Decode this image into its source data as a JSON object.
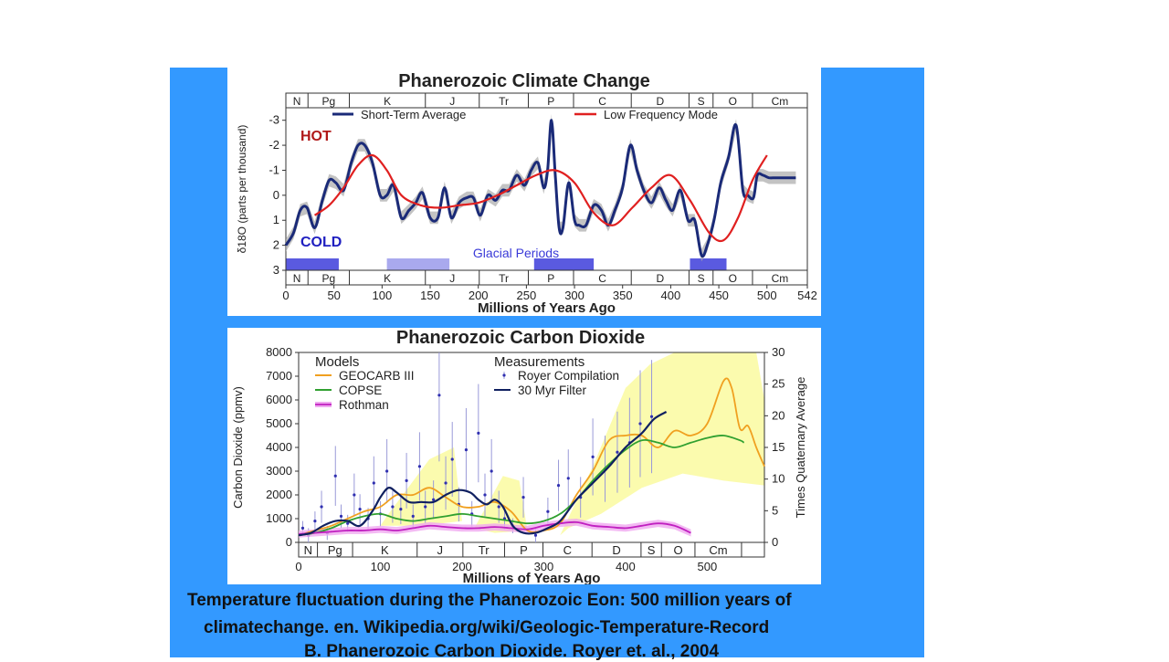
{
  "slide": {
    "caption_line1": "Temperature fluctuation during the Phanerozoic Eon: 500 million years of",
    "caption_line2": "climatechange. en. Wikipedia.org/wiki/Geologic-Temperature-Record",
    "caption_line3": "B. Phanerozoic Carbon Dioxide. Royer et. al., 2004",
    "panel_color": "#3399ff"
  },
  "chart_data": [
    {
      "type": "line",
      "title": "Phanerozoic Climate Change",
      "xlabel": "Millions of Years Ago",
      "ylabel": "δ18O (parts per thousand)",
      "xlim": [
        0,
        542
      ],
      "ylim": [
        3,
        -3.5
      ],
      "x_ticks": [
        0,
        50,
        100,
        150,
        200,
        250,
        300,
        350,
        400,
        450,
        500,
        542
      ],
      "y_ticks": [
        -3,
        -2,
        -1,
        0,
        1,
        2,
        3
      ],
      "y_tick_labels": [
        "-3",
        "-2",
        "-1",
        "0",
        "1",
        "2",
        "3"
      ],
      "hot_label": "HOT",
      "cold_label": "COLD",
      "glacial_label": "Glacial Periods",
      "periods": [
        {
          "label": "N",
          "start": 0,
          "end": 23
        },
        {
          "label": "Pg",
          "start": 23,
          "end": 66
        },
        {
          "label": "K",
          "start": 66,
          "end": 145
        },
        {
          "label": "J",
          "start": 145,
          "end": 201
        },
        {
          "label": "Tr",
          "start": 201,
          "end": 252
        },
        {
          "label": "P",
          "start": 252,
          "end": 299
        },
        {
          "label": "C",
          "start": 299,
          "end": 359
        },
        {
          "label": "D",
          "start": 359,
          "end": 419
        },
        {
          "label": "S",
          "start": 419,
          "end": 444
        },
        {
          "label": "O",
          "start": 444,
          "end": 485
        },
        {
          "label": "Cm",
          "start": 485,
          "end": 542
        }
      ],
      "glacial_periods": [
        {
          "start": 0,
          "end": 55,
          "color": "#5a5ae0"
        },
        {
          "start": 105,
          "end": 170,
          "color": "#a9a9ee"
        },
        {
          "start": 258,
          "end": 320,
          "color": "#5a5ae0"
        },
        {
          "start": 420,
          "end": 458,
          "color": "#5a5ae0"
        }
      ],
      "series": [
        {
          "name": "Short-Term Average",
          "color": "#1a2a78",
          "x": [
            0,
            8,
            15,
            22,
            30,
            38,
            45,
            52,
            60,
            68,
            75,
            82,
            90,
            98,
            105,
            112,
            120,
            128,
            135,
            142,
            150,
            158,
            165,
            172,
            180,
            188,
            195,
            202,
            210,
            218,
            225,
            232,
            240,
            248,
            255,
            262,
            268,
            272,
            276,
            280,
            284,
            288,
            294,
            300,
            305,
            312,
            320,
            328,
            335,
            342,
            350,
            358,
            365,
            372,
            380,
            388,
            395,
            402,
            410,
            418,
            425,
            432,
            438,
            445,
            452,
            460,
            468,
            475,
            480,
            486,
            490,
            496,
            502,
            508,
            512,
            520,
            530
          ],
          "y": [
            2.0,
            1.5,
            0.6,
            0.5,
            1.3,
            0.2,
            -0.6,
            -0.5,
            -0.2,
            -1.3,
            -2.0,
            -2.0,
            -1.3,
            0.0,
            0.0,
            -0.4,
            0.9,
            0.6,
            0.3,
            -0.1,
            0.9,
            0.9,
            -0.3,
            0.9,
            0.3,
            0.1,
            0.1,
            0.8,
            0.0,
            0.2,
            -0.2,
            -0.2,
            -0.8,
            -0.4,
            -1.0,
            -1.3,
            -0.3,
            -1.0,
            -3.0,
            -0.8,
            1.3,
            1.3,
            -0.5,
            1.0,
            1.2,
            1.2,
            0.4,
            0.6,
            1.2,
            0.6,
            -0.3,
            -2.0,
            -1.0,
            -0.2,
            0.3,
            -0.3,
            0.2,
            0.6,
            -0.2,
            1.0,
            1.0,
            2.4,
            2.0,
            1.0,
            -0.5,
            -1.5,
            -2.8,
            -0.2,
            0.0,
            0.1,
            -0.8,
            -0.8,
            -0.7,
            -0.7,
            -0.7,
            -0.7,
            -0.7
          ]
        },
        {
          "name": "Low Frequency Mode",
          "color": "#e02020",
          "x": [
            30,
            45,
            60,
            75,
            90,
            105,
            120,
            140,
            160,
            180,
            200,
            220,
            240,
            260,
            280,
            300,
            320,
            340,
            360,
            380,
            400,
            420,
            440,
            455,
            470,
            485,
            500
          ],
          "y": [
            0.8,
            0.4,
            -0.3,
            -1.2,
            -1.6,
            -1.0,
            0.0,
            0.4,
            0.5,
            0.4,
            0.3,
            0.0,
            -0.4,
            -0.8,
            -1.0,
            -0.5,
            0.7,
            1.2,
            0.5,
            -0.3,
            -0.8,
            0.2,
            1.5,
            1.8,
            0.9,
            -0.6,
            -1.6
          ]
        }
      ]
    },
    {
      "type": "line",
      "title": "Phanerozoic Carbon Dioxide",
      "xlabel": "Millions of Years Ago",
      "ylabel": "Carbon Dioxide (ppmv)",
      "y2label": "Times Quaternary Average",
      "xlim": [
        0,
        570
      ],
      "ylim": [
        0,
        8000
      ],
      "y2lim": [
        0,
        30
      ],
      "x_ticks": [
        0,
        100,
        200,
        300,
        400,
        500
      ],
      "y_ticks": [
        0,
        1000,
        2000,
        3000,
        4000,
        5000,
        6000,
        7000,
        8000
      ],
      "y2_ticks": [
        0,
        5,
        10,
        15,
        20,
        25,
        30
      ],
      "legend_models_heading": "Models",
      "legend_measurements_heading": "Measurements",
      "periods": [
        {
          "label": "N",
          "start": 0,
          "end": 23
        },
        {
          "label": "Pg",
          "start": 23,
          "end": 66
        },
        {
          "label": "K",
          "start": 66,
          "end": 145
        },
        {
          "label": "J",
          "start": 145,
          "end": 201
        },
        {
          "label": "Tr",
          "start": 201,
          "end": 252
        },
        {
          "label": "P",
          "start": 252,
          "end": 299
        },
        {
          "label": "C",
          "start": 299,
          "end": 359
        },
        {
          "label": "D",
          "start": 359,
          "end": 419
        },
        {
          "label": "S",
          "start": 419,
          "end": 444
        },
        {
          "label": "O",
          "start": 444,
          "end": 485
        },
        {
          "label": "Cm",
          "start": 485,
          "end": 542
        }
      ],
      "series": [
        {
          "name": "GEOCARB III",
          "color": "#f0a020",
          "x": [
            0,
            20,
            40,
            60,
            80,
            100,
            120,
            140,
            160,
            180,
            200,
            220,
            240,
            260,
            280,
            300,
            320,
            340,
            360,
            380,
            400,
            420,
            440,
            460,
            480,
            500,
            520,
            530,
            540,
            550,
            560,
            570
          ],
          "y": [
            300,
            500,
            700,
            1000,
            1300,
            1500,
            2000,
            2000,
            2300,
            1900,
            1500,
            1500,
            1700,
            1300,
            500,
            500,
            800,
            2000,
            3000,
            4300,
            4500,
            4500,
            4000,
            4700,
            4500,
            5000,
            6800,
            6500,
            4800,
            4900,
            4000,
            3200
          ]
        },
        {
          "name": "COPSE",
          "color": "#30a030",
          "x": [
            0,
            20,
            40,
            60,
            80,
            100,
            120,
            140,
            160,
            180,
            200,
            220,
            240,
            260,
            280,
            300,
            320,
            340,
            360,
            380,
            400,
            420,
            440,
            460,
            480,
            500,
            520,
            540,
            545
          ],
          "y": [
            300,
            400,
            600,
            900,
            1100,
            1200,
            1000,
            900,
            1000,
            1100,
            1200,
            1100,
            1000,
            900,
            800,
            900,
            1200,
            1800,
            2600,
            3300,
            3900,
            4300,
            4200,
            4000,
            4200,
            4400,
            4500,
            4300,
            4200
          ]
        },
        {
          "name": "Rothman",
          "color": "#c020c0",
          "x": [
            0,
            20,
            40,
            60,
            80,
            100,
            120,
            140,
            160,
            180,
            200,
            220,
            240,
            260,
            280,
            300,
            320,
            340,
            360,
            380,
            400,
            420,
            440,
            460,
            480
          ],
          "y": [
            350,
            400,
            450,
            500,
            500,
            550,
            500,
            600,
            700,
            650,
            600,
            600,
            650,
            600,
            550,
            700,
            800,
            850,
            700,
            650,
            600,
            700,
            800,
            700,
            400
          ]
        },
        {
          "name": "30 Myr Filter",
          "color": "#102060",
          "x": [
            0,
            15,
            30,
            45,
            60,
            75,
            90,
            100,
            110,
            120,
            135,
            150,
            165,
            180,
            195,
            210,
            220,
            230,
            240,
            250,
            262,
            275,
            290,
            305,
            320,
            340,
            360,
            380,
            400,
            420,
            435,
            450
          ],
          "y": [
            300,
            400,
            700,
            900,
            900,
            700,
            1300,
            1900,
            2300,
            2100,
            1700,
            1700,
            1700,
            2000,
            2200,
            2100,
            1800,
            1600,
            1800,
            1500,
            700,
            400,
            400,
            600,
            900,
            1800,
            2500,
            3200,
            4000,
            4600,
            5200,
            5500
          ]
        },
        {
          "name": "Royer Compilation",
          "color": "#3030b0",
          "x": [
            5,
            12,
            20,
            28,
            35,
            45,
            52,
            60,
            68,
            75,
            85,
            92,
            100,
            108,
            115,
            125,
            132,
            140,
            148,
            155,
            165,
            172,
            180,
            188,
            196,
            205,
            212,
            220,
            228,
            236,
            245,
            252,
            262,
            275,
            290,
            305,
            318,
            330,
            345,
            360,
            375,
            390,
            405,
            418,
            432
          ],
          "y": [
            600,
            300,
            900,
            1500,
            400,
            2800,
            1100,
            800,
            2000,
            1400,
            1000,
            2500,
            1200,
            3000,
            1500,
            1400,
            2600,
            1100,
            3200,
            1500,
            1800,
            6200,
            2500,
            3500,
            1600,
            3900,
            1200,
            4600,
            2000,
            3000,
            1500,
            1000,
            700,
            1900,
            300,
            1300,
            2400,
            2700,
            1900,
            3600,
            3100,
            3800,
            4200,
            5000,
            5300
          ]
        }
      ],
      "uncertainty_band_color": "#fafaa0",
      "rothman_band_color": "#f0a8f0"
    }
  ]
}
